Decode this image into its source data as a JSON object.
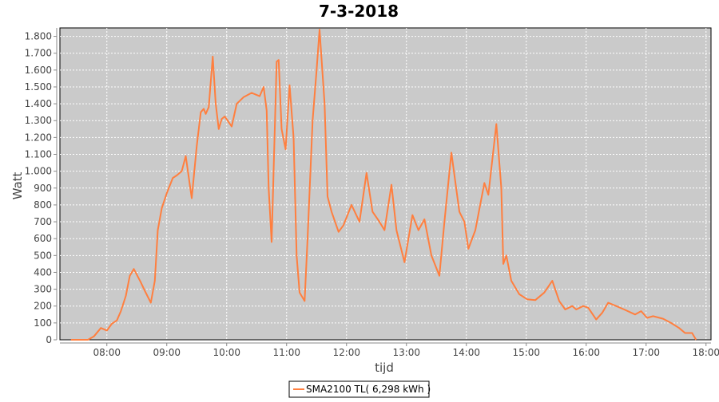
{
  "chart_data": {
    "type": "line",
    "title": "7-3-2018",
    "xlabel": "tijd",
    "ylabel": "Watt",
    "xlim": [
      "07:13",
      "18:05"
    ],
    "ylim": [
      0,
      1850
    ],
    "grid": true,
    "legend_position": "bottom",
    "colors": {
      "series": "#ff7f3f",
      "plot_bg": "#cacaca",
      "grid": "#ffffff"
    },
    "x_ticks": [
      "08:00",
      "09:00",
      "10:00",
      "11:00",
      "12:00",
      "13:00",
      "14:00",
      "15:00",
      "16:00",
      "17:00",
      "18:00"
    ],
    "y_ticks": [
      {
        "value": 0,
        "label": "0"
      },
      {
        "value": 100,
        "label": "100"
      },
      {
        "value": 200,
        "label": "200"
      },
      {
        "value": 300,
        "label": "300"
      },
      {
        "value": 400,
        "label": "400"
      },
      {
        "value": 500,
        "label": "500"
      },
      {
        "value": 600,
        "label": "600"
      },
      {
        "value": 700,
        "label": "700"
      },
      {
        "value": 800,
        "label": "800"
      },
      {
        "value": 900,
        "label": "900"
      },
      {
        "value": 1000,
        "label": "1.000"
      },
      {
        "value": 1100,
        "label": "1.100"
      },
      {
        "value": 1200,
        "label": "1.200"
      },
      {
        "value": 1300,
        "label": "1.300"
      },
      {
        "value": 1400,
        "label": "1.400"
      },
      {
        "value": 1500,
        "label": "1.500"
      },
      {
        "value": 1600,
        "label": "1.600"
      },
      {
        "value": 1700,
        "label": "1.700"
      },
      {
        "value": 1800,
        "label": "1.800"
      }
    ],
    "series": [
      {
        "name": "SMA2100 TL( 6,298 kWh )",
        "x": [
          "07:24",
          "07:41",
          "07:47",
          "07:54",
          "08:00",
          "08:05",
          "08:10",
          "08:14",
          "08:19",
          "08:23",
          "08:27",
          "08:34",
          "08:38",
          "08:44",
          "08:48",
          "08:51",
          "08:55",
          "09:00",
          "09:06",
          "09:10",
          "09:15",
          "09:19",
          "09:25",
          "09:30",
          "09:34",
          "09:37",
          "09:39",
          "09:42",
          "09:46",
          "09:49",
          "09:52",
          "09:55",
          "09:58",
          "10:05",
          "10:10",
          "10:17",
          "10:25",
          "10:33",
          "10:37",
          "10:40",
          "10:42",
          "10:45",
          "10:46",
          "10:50",
          "10:52",
          "10:55",
          "10:59",
          "11:03",
          "11:07",
          "11:10",
          "11:13",
          "11:18",
          "11:21",
          "11:26",
          "11:30",
          "11:33",
          "11:38",
          "11:41",
          "11:45",
          "11:52",
          "11:57",
          "12:05",
          "12:13",
          "12:20",
          "12:26",
          "12:33",
          "12:38",
          "12:45",
          "12:50",
          "12:58",
          "13:06",
          "13:12",
          "13:18",
          "13:25",
          "13:33",
          "13:38",
          "13:45",
          "13:53",
          "13:58",
          "14:02",
          "14:09",
          "14:18",
          "14:22",
          "14:30",
          "14:35",
          "14:37",
          "14:40",
          "14:45",
          "14:53",
          "15:01",
          "15:09",
          "15:18",
          "15:26",
          "15:33",
          "15:39",
          "15:46",
          "15:50",
          "15:57",
          "16:02",
          "16:10",
          "16:16",
          "16:22",
          "16:30",
          "16:38",
          "16:49",
          "16:55",
          "17:01",
          "17:07",
          "17:17",
          "17:25",
          "17:33",
          "17:39",
          "17:46",
          "17:50"
        ],
        "values": [
          0,
          0,
          20,
          70,
          55,
          95,
          115,
          170,
          260,
          380,
          420,
          340,
          290,
          220,
          350,
          650,
          780,
          870,
          960,
          975,
          1000,
          1090,
          840,
          1150,
          1350,
          1370,
          1340,
          1380,
          1680,
          1400,
          1250,
          1310,
          1325,
          1265,
          1400,
          1440,
          1465,
          1445,
          1500,
          1360,
          900,
          580,
          800,
          1650,
          1660,
          1250,
          1130,
          1510,
          1200,
          500,
          280,
          230,
          600,
          1300,
          1600,
          1840,
          1400,
          850,
          760,
          640,
          680,
          800,
          700,
          990,
          760,
          700,
          650,
          920,
          650,
          460,
          740,
          650,
          715,
          500,
          380,
          700,
          1110,
          760,
          700,
          540,
          650,
          930,
          860,
          1280,
          900,
          450,
          500,
          350,
          270,
          240,
          235,
          280,
          350,
          230,
          180,
          200,
          180,
          200,
          190,
          120,
          160,
          220,
          200,
          180,
          150,
          170,
          130,
          140,
          125,
          100,
          70,
          40,
          40,
          0
        ]
      }
    ]
  }
}
